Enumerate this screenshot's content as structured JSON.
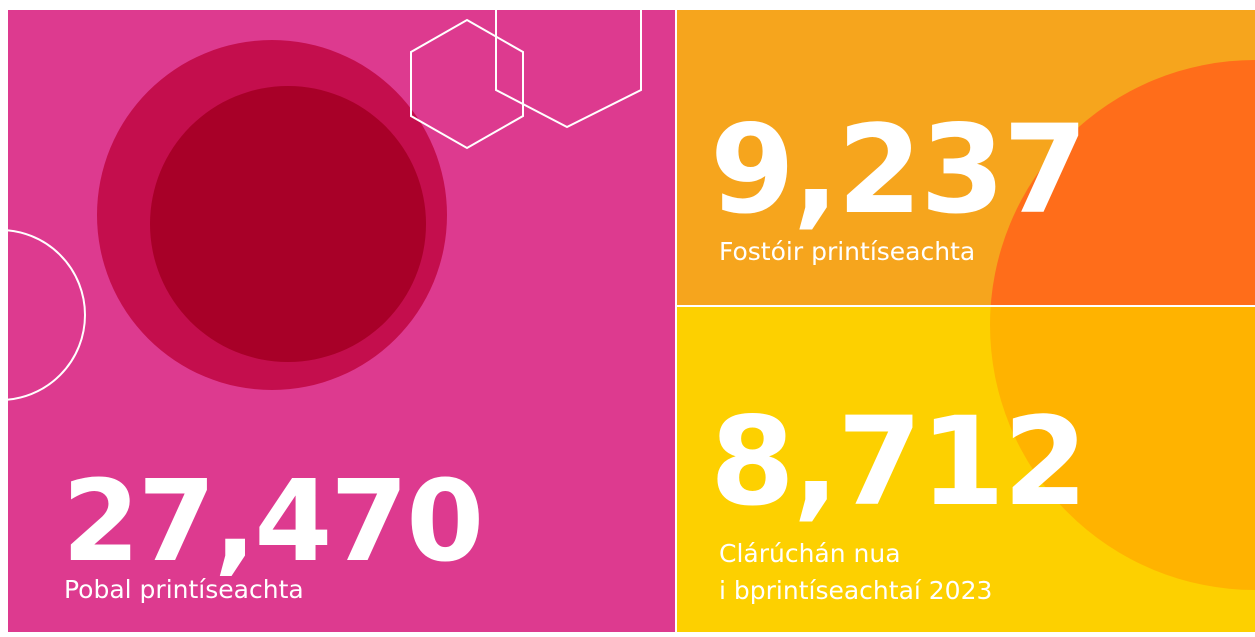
{
  "stats": [
    {
      "value": "27,470",
      "label_lines": [
        "Pobal printíseachta"
      ]
    },
    {
      "value": "9,237",
      "label_lines": [
        "Fostóir printíseachta"
      ]
    },
    {
      "value": "8,712",
      "label_lines": [
        "Clárúchán nua",
        "i bprintíseachtaí 2023"
      ]
    }
  ]
}
